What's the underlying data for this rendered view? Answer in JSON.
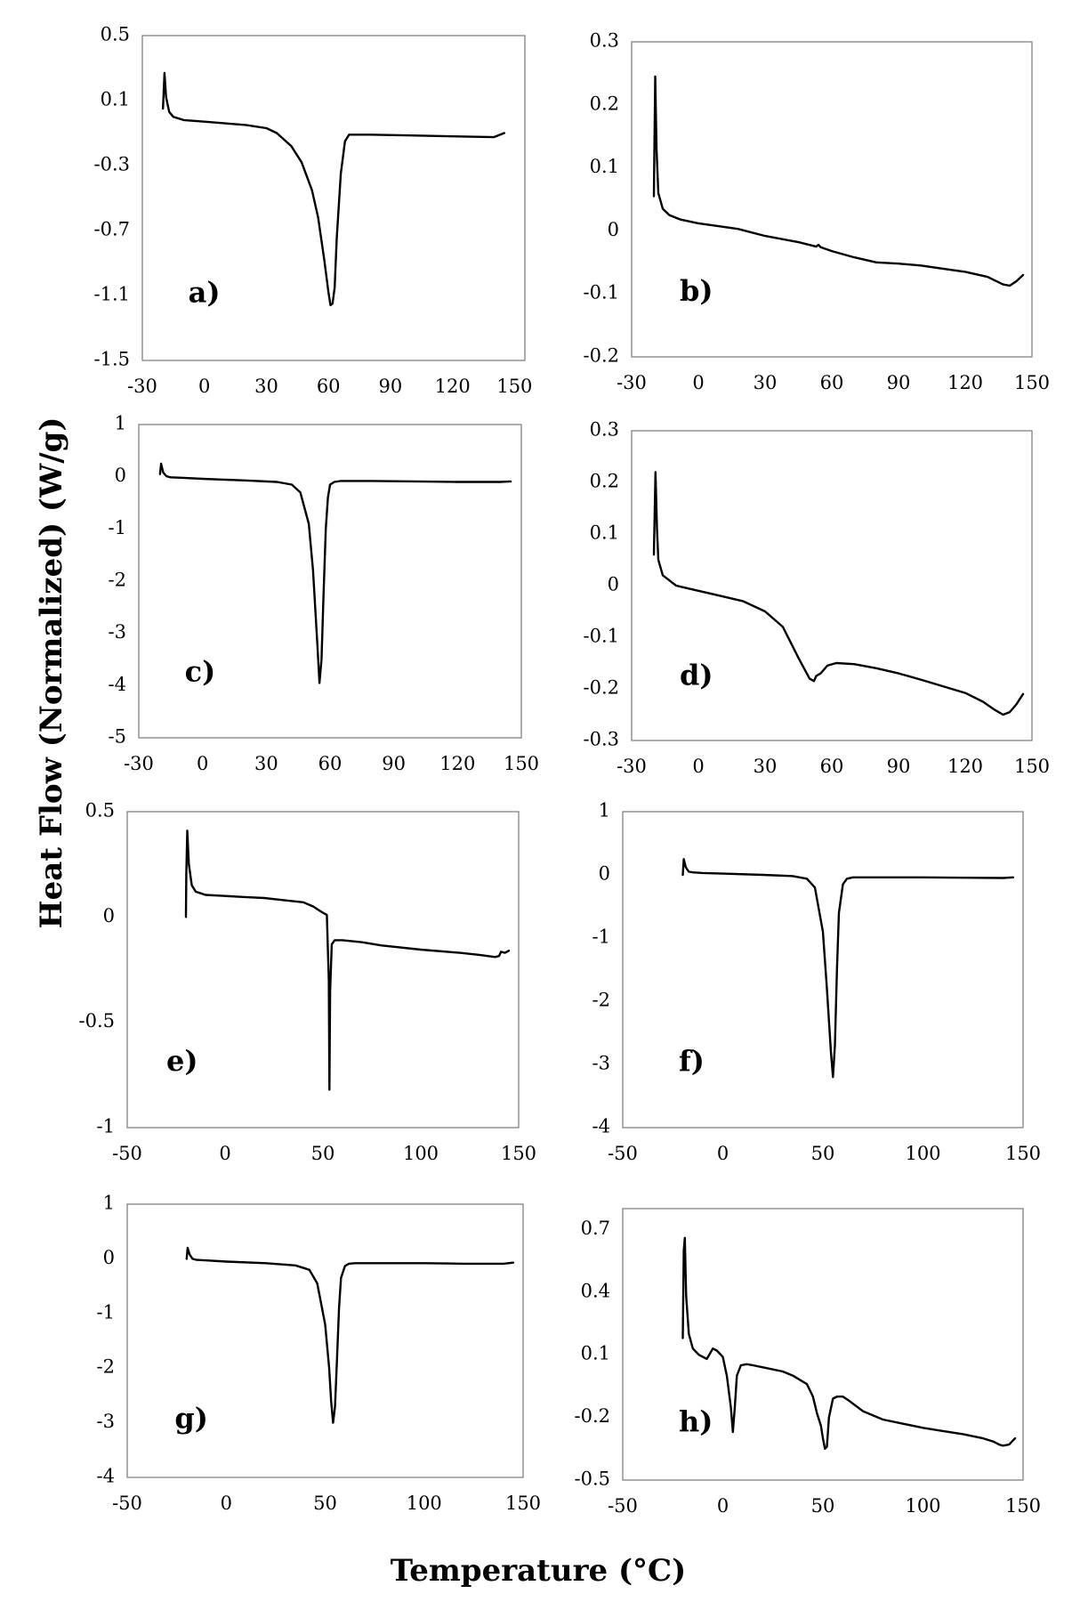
{
  "figure": {
    "ylabel": "Heat Flow (Normalized) (W/g)",
    "xlabel": "Temperature (°C)"
  },
  "chart_data": [
    {
      "type": "line",
      "panel": "a)",
      "title": "",
      "xlabel": "Temperature (°C)",
      "ylabel": "Heat Flow (Normalized) (W/g)",
      "xlim": [
        -30,
        155
      ],
      "ylim": [
        -1.5,
        0.5
      ],
      "xticks": [
        -30,
        0,
        30,
        60,
        90,
        120,
        150
      ],
      "yticks": [
        -1.5,
        -1.1,
        -0.7,
        -0.3,
        0.1,
        0.5
      ],
      "xtick_labels": [
        "-30",
        "0",
        "30",
        "60",
        "90",
        "120",
        "150"
      ],
      "ytick_labels": [
        "-1.5",
        "-1.1",
        "-0.7",
        "-0.3",
        "0.1",
        "0.5"
      ],
      "series": [
        {
          "name": "a",
          "x": [
            -20,
            -19.3,
            -18.5,
            -17,
            -15,
            -10,
            0,
            10,
            20,
            30,
            35,
            42,
            47,
            52,
            55,
            58,
            60,
            61,
            62,
            63,
            64,
            66,
            68,
            70,
            80,
            100,
            120,
            140,
            145
          ],
          "y": [
            0.05,
            0.27,
            0.12,
            0.03,
            0.0,
            -0.02,
            -0.03,
            -0.04,
            -0.05,
            -0.07,
            -0.1,
            -0.18,
            -0.28,
            -0.45,
            -0.62,
            -0.88,
            -1.08,
            -1.16,
            -1.15,
            -1.05,
            -0.75,
            -0.35,
            -0.15,
            -0.11,
            -0.11,
            -0.115,
            -0.12,
            -0.125,
            -0.1
          ]
        }
      ]
    },
    {
      "type": "line",
      "panel": "b)",
      "title": "",
      "xlabel": "Temperature (°C)",
      "ylabel": "Heat Flow (Normalized) (W/g)",
      "xlim": [
        -30,
        150
      ],
      "ylim": [
        -0.2,
        0.3
      ],
      "xticks": [
        -30,
        0,
        30,
        60,
        90,
        120,
        150
      ],
      "yticks": [
        -0.2,
        -0.1,
        0,
        0.1,
        0.2,
        0.3
      ],
      "xtick_labels": [
        "-30",
        "0",
        "30",
        "60",
        "90",
        "120",
        "150"
      ],
      "ytick_labels": [
        "-0.2",
        "-0.1",
        "0",
        "0.1",
        "0.2",
        "0.3"
      ],
      "series": [
        {
          "name": "b",
          "x": [
            -20,
            -19.4,
            -18.8,
            -18,
            -16,
            -13,
            -8,
            0,
            10,
            18,
            30,
            45,
            53,
            54,
            55,
            60,
            70,
            80,
            90,
            100,
            110,
            120,
            130,
            137,
            140,
            143,
            146
          ],
          "y": [
            0.055,
            0.245,
            0.13,
            0.06,
            0.035,
            0.025,
            0.018,
            0.012,
            0.007,
            0.003,
            -0.008,
            -0.018,
            -0.025,
            -0.022,
            -0.026,
            -0.032,
            -0.042,
            -0.05,
            -0.052,
            -0.055,
            -0.06,
            -0.065,
            -0.073,
            -0.085,
            -0.087,
            -0.08,
            -0.07
          ]
        }
      ]
    },
    {
      "type": "line",
      "panel": "c)",
      "title": "",
      "xlabel": "Temperature (°C)",
      "ylabel": "Heat Flow (Normalized) (W/g)",
      "xlim": [
        -30,
        150
      ],
      "ylim": [
        -5,
        1
      ],
      "xticks": [
        -30,
        0,
        30,
        60,
        90,
        120,
        150
      ],
      "yticks": [
        -5,
        -4,
        -3,
        -2,
        -1,
        0,
        1
      ],
      "xtick_labels": [
        "-30",
        "0",
        "30",
        "60",
        "90",
        "120",
        "150"
      ],
      "ytick_labels": [
        "-5",
        "-4",
        "-3",
        "-2",
        "-1",
        "0",
        "1"
      ],
      "series": [
        {
          "name": "c",
          "x": [
            -20,
            -19.5,
            -18.5,
            -17,
            -15,
            -10,
            0,
            20,
            35,
            42,
            46,
            50,
            52,
            54,
            55,
            56,
            57,
            58,
            59,
            60,
            62,
            65,
            80,
            100,
            120,
            140,
            145
          ],
          "y": [
            0.05,
            0.25,
            0.08,
            0.01,
            -0.01,
            -0.02,
            -0.04,
            -0.07,
            -0.1,
            -0.15,
            -0.3,
            -0.9,
            -1.8,
            -3.2,
            -3.95,
            -3.5,
            -2.2,
            -1.0,
            -0.4,
            -0.15,
            -0.1,
            -0.08,
            -0.08,
            -0.09,
            -0.1,
            -0.1,
            -0.09
          ]
        }
      ]
    },
    {
      "type": "line",
      "panel": "d)",
      "title": "",
      "xlabel": "Temperature (°C)",
      "ylabel": "Heat Flow (Normalized) (W/g)",
      "xlim": [
        -30,
        150
      ],
      "ylim": [
        -0.3,
        0.3
      ],
      "xticks": [
        -30,
        0,
        30,
        60,
        90,
        120,
        150
      ],
      "yticks": [
        -0.3,
        -0.2,
        -0.1,
        0,
        0.1,
        0.2,
        0.3
      ],
      "xtick_labels": [
        "-30",
        "0",
        "30",
        "60",
        "90",
        "120",
        "150"
      ],
      "ytick_labels": [
        "-0.3",
        "-0.2",
        "-0.1",
        "0",
        "0.1",
        "0.2",
        "0.3"
      ],
      "series": [
        {
          "name": "d",
          "x": [
            -20,
            -19.3,
            -18.6,
            -18,
            -16,
            -13,
            -10,
            0,
            10,
            20,
            30,
            38,
            45,
            50,
            52,
            53,
            55,
            58,
            62,
            70,
            80,
            90,
            100,
            110,
            120,
            128,
            133,
            137,
            140,
            143,
            146
          ],
          "y": [
            0.06,
            0.22,
            0.11,
            0.05,
            0.02,
            0.01,
            0.0,
            -0.01,
            -0.02,
            -0.03,
            -0.05,
            -0.08,
            -0.14,
            -0.18,
            -0.185,
            -0.175,
            -0.17,
            -0.155,
            -0.15,
            -0.152,
            -0.16,
            -0.17,
            -0.182,
            -0.195,
            -0.208,
            -0.225,
            -0.24,
            -0.25,
            -0.245,
            -0.23,
            -0.21
          ]
        }
      ]
    },
    {
      "type": "line",
      "panel": "e)",
      "title": "",
      "xlabel": "Temperature (°C)",
      "ylabel": "Heat Flow (Normalized) (W/g)",
      "xlim": [
        -50,
        150
      ],
      "ylim": [
        -1,
        0.5
      ],
      "xticks": [
        -50,
        0,
        50,
        100,
        150
      ],
      "yticks": [
        -1,
        -0.5,
        0,
        0.5
      ],
      "xtick_labels": [
        "-50",
        "0",
        "50",
        "100",
        "150"
      ],
      "ytick_labels": [
        "-1",
        "-0.5",
        "0",
        "0.5"
      ],
      "series": [
        {
          "name": "e",
          "x": [
            -20,
            -19.8,
            -19.3,
            -18.5,
            -17,
            -15,
            -10,
            0,
            10,
            20,
            30,
            40,
            45,
            50,
            52,
            53,
            53.3,
            53.7,
            54.5,
            56,
            60,
            70,
            80,
            100,
            120,
            130,
            138,
            140,
            141,
            143,
            145
          ],
          "y": [
            0.0,
            0.2,
            0.41,
            0.25,
            0.15,
            0.12,
            0.105,
            0.1,
            0.095,
            0.09,
            0.08,
            0.07,
            0.05,
            0.02,
            0.01,
            -0.3,
            -0.82,
            -0.35,
            -0.13,
            -0.11,
            -0.11,
            -0.12,
            -0.135,
            -0.155,
            -0.17,
            -0.18,
            -0.19,
            -0.185,
            -0.165,
            -0.17,
            -0.16
          ]
        }
      ]
    },
    {
      "type": "line",
      "panel": "f)",
      "title": "",
      "xlabel": "Temperature (°C)",
      "ylabel": "Heat Flow (Normalized) (W/g)",
      "xlim": [
        -50,
        150
      ],
      "ylim": [
        -4,
        1
      ],
      "xticks": [
        -50,
        0,
        50,
        100,
        150
      ],
      "yticks": [
        -4,
        -3,
        -2,
        -1,
        0,
        1
      ],
      "xtick_labels": [
        "-50",
        "0",
        "50",
        "100",
        "150"
      ],
      "ytick_labels": [
        "-4",
        "-3",
        "-2",
        "-1",
        "0",
        "1"
      ],
      "series": [
        {
          "name": "f",
          "x": [
            -20,
            -19.5,
            -18.5,
            -17,
            -15,
            -10,
            0,
            20,
            35,
            42,
            46,
            50,
            52,
            54,
            55,
            56,
            57,
            58,
            60,
            62,
            65,
            80,
            100,
            120,
            140,
            145
          ],
          "y": [
            0.0,
            0.25,
            0.12,
            0.05,
            0.04,
            0.03,
            0.02,
            0.0,
            -0.02,
            -0.06,
            -0.2,
            -0.9,
            -1.8,
            -2.8,
            -3.2,
            -2.7,
            -1.5,
            -0.6,
            -0.15,
            -0.06,
            -0.04,
            -0.04,
            -0.04,
            -0.045,
            -0.05,
            -0.04
          ]
        }
      ]
    },
    {
      "type": "line",
      "panel": "g)",
      "title": "",
      "xlabel": "Temperature (°C)",
      "ylabel": "Heat Flow (Normalized) (W/g)",
      "xlim": [
        -50,
        150
      ],
      "ylim": [
        -4,
        1
      ],
      "xticks": [
        -50,
        0,
        50,
        100,
        150
      ],
      "yticks": [
        -4,
        -3,
        -2,
        -1,
        0,
        1
      ],
      "xtick_labels": [
        "-50",
        "0",
        "50",
        "100",
        "150"
      ],
      "ytick_labels": [
        "-4",
        "-3",
        "-2",
        "-1",
        "0",
        "1"
      ],
      "series": [
        {
          "name": "g",
          "x": [
            -20,
            -19.5,
            -18.5,
            -17,
            -15,
            -10,
            0,
            20,
            35,
            42,
            46,
            50,
            52,
            53,
            54,
            55,
            56,
            57,
            58,
            60,
            62,
            65,
            80,
            100,
            120,
            140,
            145
          ],
          "y": [
            0.0,
            0.2,
            0.08,
            0.0,
            -0.02,
            -0.03,
            -0.05,
            -0.08,
            -0.12,
            -0.2,
            -0.45,
            -1.2,
            -2.0,
            -2.6,
            -3.0,
            -2.7,
            -1.8,
            -0.9,
            -0.35,
            -0.13,
            -0.09,
            -0.08,
            -0.08,
            -0.08,
            -0.09,
            -0.09,
            -0.07
          ]
        }
      ]
    },
    {
      "type": "line",
      "panel": "h)",
      "title": "",
      "xlabel": "Temperature (°C)",
      "ylabel": "Heat Flow (Normalized) (W/g)",
      "xlim": [
        -50,
        150
      ],
      "ylim": [
        -0.5,
        0.8
      ],
      "xticks": [
        -50,
        0,
        50,
        100,
        150
      ],
      "yticks": [
        -0.5,
        -0.2,
        0.1,
        0.4,
        0.7
      ],
      "xtick_labels": [
        "-50",
        "0",
        "50",
        "100",
        "150"
      ],
      "ytick_labels": [
        "-0.5",
        "-0.2",
        "0.1",
        "0.4",
        "0.7"
      ],
      "series": [
        {
          "name": "h",
          "x": [
            -20,
            -19.5,
            -19,
            -18.3,
            -17,
            -15,
            -12,
            -8,
            -5,
            -3,
            0,
            2,
            4,
            5,
            6,
            7,
            9,
            12,
            15,
            20,
            30,
            35,
            42,
            45,
            47,
            49,
            50,
            51,
            52,
            53,
            55,
            57,
            60,
            63,
            70,
            80,
            90,
            100,
            110,
            120,
            130,
            135,
            138,
            140,
            143,
            146
          ],
          "y": [
            0.18,
            0.6,
            0.66,
            0.38,
            0.2,
            0.13,
            0.1,
            0.08,
            0.13,
            0.12,
            0.09,
            0.0,
            -0.15,
            -0.27,
            -0.15,
            0.0,
            0.05,
            0.055,
            0.05,
            0.04,
            0.02,
            0.0,
            -0.04,
            -0.1,
            -0.18,
            -0.24,
            -0.3,
            -0.35,
            -0.34,
            -0.2,
            -0.11,
            -0.1,
            -0.1,
            -0.12,
            -0.17,
            -0.21,
            -0.23,
            -0.25,
            -0.265,
            -0.28,
            -0.3,
            -0.315,
            -0.33,
            -0.335,
            -0.33,
            -0.3
          ]
        }
      ]
    }
  ]
}
